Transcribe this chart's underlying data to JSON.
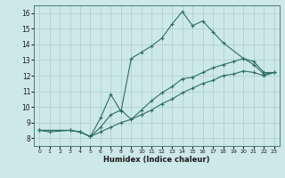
{
  "xlabel": "Humidex (Indice chaleur)",
  "ylabel": "",
  "background_color": "#cde8e8",
  "grid_color": "#aacece",
  "line_color": "#2e6e64",
  "xlim": [
    -0.5,
    23.5
  ],
  "ylim": [
    7.5,
    16.5
  ],
  "xticks": [
    0,
    1,
    2,
    3,
    4,
    5,
    6,
    7,
    8,
    9,
    10,
    11,
    12,
    13,
    14,
    15,
    16,
    17,
    18,
    19,
    20,
    21,
    22,
    23
  ],
  "yticks": [
    8,
    9,
    10,
    11,
    12,
    13,
    14,
    15,
    16
  ],
  "line1_x": [
    0,
    1,
    3,
    4,
    5,
    6,
    7,
    8,
    9,
    10,
    11,
    12,
    13,
    14,
    15,
    16,
    17,
    18,
    20,
    21,
    22,
    23
  ],
  "line1_y": [
    8.5,
    8.4,
    8.5,
    8.4,
    8.1,
    9.3,
    10.8,
    9.7,
    13.1,
    13.5,
    13.9,
    14.4,
    15.3,
    16.1,
    15.2,
    15.5,
    14.8,
    14.1,
    13.1,
    12.7,
    12.1,
    12.2
  ],
  "line2_x": [
    0,
    3,
    4,
    5,
    6,
    7,
    8,
    9,
    10,
    11,
    12,
    13,
    14,
    15,
    16,
    17,
    18,
    19,
    20,
    21,
    22,
    23
  ],
  "line2_y": [
    8.5,
    8.5,
    8.4,
    8.1,
    8.7,
    9.5,
    9.8,
    9.2,
    9.8,
    10.4,
    10.9,
    11.3,
    11.8,
    11.9,
    12.2,
    12.5,
    12.7,
    12.9,
    13.1,
    12.9,
    12.2,
    12.2
  ],
  "line3_x": [
    0,
    3,
    4,
    5,
    6,
    7,
    8,
    9,
    10,
    11,
    12,
    13,
    14,
    15,
    16,
    17,
    18,
    19,
    20,
    21,
    22,
    23
  ],
  "line3_y": [
    8.5,
    8.5,
    8.4,
    8.1,
    8.4,
    8.7,
    9.0,
    9.2,
    9.5,
    9.8,
    10.2,
    10.5,
    10.9,
    11.2,
    11.5,
    11.7,
    12.0,
    12.1,
    12.3,
    12.2,
    12.0,
    12.2
  ]
}
